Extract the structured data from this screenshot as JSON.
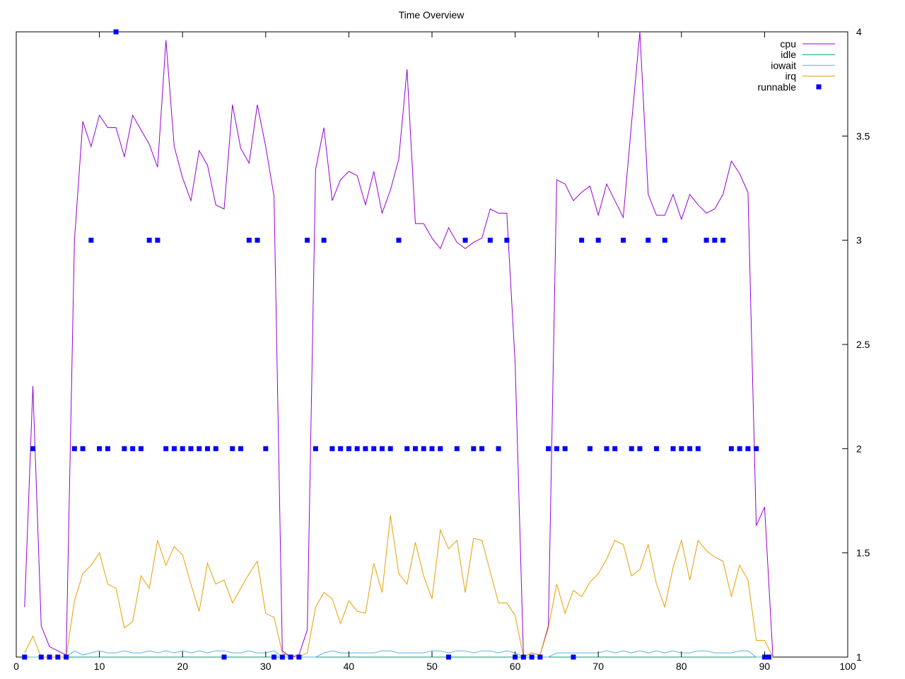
{
  "chart_data": {
    "type": "line",
    "title": "Time Overview",
    "xlabel": "",
    "ylabel": "",
    "xlim": [
      0,
      100
    ],
    "ylim": [
      1,
      4
    ],
    "x_ticks": [
      "0",
      "10",
      "20",
      "30",
      "40",
      "50",
      "60",
      "70",
      "80",
      "90",
      "100"
    ],
    "y_ticks": [
      "1",
      "1.5",
      "2",
      "2.5",
      "3",
      "3.5",
      "4"
    ],
    "y_axis_side": "right",
    "grid": false,
    "legend_position": "top-right",
    "series": [
      {
        "name": "cpu",
        "style": "line",
        "color": "#9400d3",
        "x": [
          1,
          2,
          3,
          4,
          5,
          6,
          7,
          8,
          9,
          10,
          11,
          12,
          13,
          14,
          15,
          16,
          17,
          18,
          19,
          20,
          21,
          22,
          23,
          24,
          25,
          26,
          27,
          28,
          29,
          30,
          31,
          32,
          33,
          34,
          35,
          36,
          37,
          38,
          39,
          40,
          41,
          42,
          43,
          44,
          45,
          46,
          47,
          48,
          49,
          50,
          51,
          52,
          53,
          54,
          55,
          56,
          57,
          58,
          59,
          60,
          61,
          62,
          63,
          64,
          65,
          66,
          67,
          68,
          69,
          70,
          71,
          72,
          73,
          74,
          75,
          76,
          77,
          78,
          79,
          80,
          81,
          82,
          83,
          84,
          85,
          86,
          87,
          88,
          89,
          90,
          91
        ],
        "values": [
          1.24,
          2.3,
          1.15,
          1.05,
          1.03,
          1.01,
          3.0,
          3.57,
          3.45,
          3.6,
          3.54,
          3.54,
          3.4,
          3.6,
          3.53,
          3.46,
          3.35,
          3.96,
          3.45,
          3.3,
          3.19,
          3.43,
          3.36,
          3.17,
          3.15,
          3.65,
          3.44,
          3.37,
          3.65,
          3.45,
          3.21,
          1.03,
          1.0,
          1.01,
          1.13,
          3.34,
          3.54,
          3.19,
          3.29,
          3.33,
          3.31,
          3.17,
          3.33,
          3.13,
          3.24,
          3.39,
          3.82,
          3.08,
          3.08,
          3.01,
          2.96,
          3.06,
          2.99,
          2.96,
          2.99,
          3.01,
          3.15,
          3.13,
          3.13,
          2.41,
          1.0,
          1.02,
          1.01,
          1.15,
          3.29,
          3.27,
          3.19,
          3.23,
          3.26,
          3.12,
          3.27,
          3.19,
          3.11,
          3.56,
          4.0,
          3.22,
          3.12,
          3.12,
          3.22,
          3.1,
          3.22,
          3.17,
          3.13,
          3.15,
          3.22,
          3.38,
          3.32,
          3.23,
          1.63,
          1.72,
          1.0
        ]
      },
      {
        "name": "idle",
        "style": "line",
        "color": "#009e73",
        "x": [
          1,
          90
        ],
        "values": [
          1.0,
          1.0
        ]
      },
      {
        "name": "iowait",
        "style": "line",
        "color": "#56b4e9",
        "x": [
          1,
          2,
          3,
          4,
          5,
          6,
          7,
          8,
          9,
          10,
          11,
          12,
          13,
          14,
          15,
          16,
          17,
          18,
          19,
          20,
          21,
          22,
          23,
          24,
          25,
          26,
          27,
          28,
          29,
          30,
          31,
          32,
          33,
          34,
          35,
          36,
          37,
          38,
          39,
          40,
          41,
          42,
          43,
          44,
          45,
          46,
          47,
          48,
          49,
          50,
          51,
          52,
          53,
          54,
          55,
          56,
          57,
          58,
          59,
          60,
          61,
          62,
          63,
          64,
          65,
          66,
          67,
          68,
          69,
          70,
          71,
          72,
          73,
          74,
          75,
          76,
          77,
          78,
          79,
          80,
          81,
          82,
          83,
          84,
          85,
          86,
          87,
          88,
          89,
          90,
          91
        ],
        "values": [
          1.0,
          1.0,
          1.0,
          1.0,
          1.0,
          1.0,
          1.03,
          1.01,
          1.02,
          1.03,
          1.02,
          1.02,
          1.03,
          1.02,
          1.02,
          1.03,
          1.02,
          1.03,
          1.02,
          1.03,
          1.02,
          1.03,
          1.02,
          1.03,
          1.03,
          1.02,
          1.02,
          1.03,
          1.02,
          1.02,
          1.03,
          1.0,
          1.0,
          1.0,
          1.0,
          1.0,
          1.02,
          1.03,
          1.02,
          1.02,
          1.02,
          1.02,
          1.02,
          1.03,
          1.03,
          1.02,
          1.02,
          1.02,
          1.02,
          1.03,
          1.03,
          1.02,
          1.03,
          1.03,
          1.02,
          1.03,
          1.03,
          1.02,
          1.03,
          1.02,
          1.0,
          1.0,
          1.0,
          1.0,
          1.02,
          1.02,
          1.02,
          1.02,
          1.02,
          1.02,
          1.03,
          1.02,
          1.03,
          1.02,
          1.03,
          1.02,
          1.03,
          1.02,
          1.03,
          1.02,
          1.02,
          1.03,
          1.03,
          1.02,
          1.02,
          1.02,
          1.03,
          1.03,
          1.0,
          1.0,
          1.0
        ]
      },
      {
        "name": "irq",
        "style": "line",
        "color": "#e69f00",
        "x": [
          1,
          2,
          3,
          4,
          5,
          6,
          7,
          8,
          9,
          10,
          11,
          12,
          13,
          14,
          15,
          16,
          17,
          18,
          19,
          20,
          21,
          22,
          23,
          24,
          25,
          26,
          27,
          28,
          29,
          30,
          31,
          32,
          33,
          34,
          35,
          36,
          37,
          38,
          39,
          40,
          41,
          42,
          43,
          44,
          45,
          46,
          47,
          48,
          49,
          50,
          51,
          52,
          53,
          54,
          55,
          56,
          57,
          58,
          59,
          60,
          61,
          62,
          63,
          64,
          65,
          66,
          67,
          68,
          69,
          70,
          71,
          72,
          73,
          74,
          75,
          76,
          77,
          78,
          79,
          80,
          81,
          82,
          83,
          84,
          85,
          86,
          87,
          88,
          89,
          90,
          91
        ],
        "values": [
          1.02,
          1.1,
          1.0,
          1.0,
          1.0,
          1.0,
          1.27,
          1.4,
          1.44,
          1.5,
          1.35,
          1.33,
          1.14,
          1.17,
          1.39,
          1.33,
          1.56,
          1.44,
          1.53,
          1.49,
          1.35,
          1.22,
          1.45,
          1.35,
          1.37,
          1.26,
          1.33,
          1.4,
          1.46,
          1.21,
          1.19,
          1.02,
          1.0,
          1.0,
          1.02,
          1.24,
          1.31,
          1.28,
          1.16,
          1.27,
          1.22,
          1.21,
          1.45,
          1.31,
          1.68,
          1.4,
          1.35,
          1.55,
          1.39,
          1.28,
          1.61,
          1.52,
          1.56,
          1.31,
          1.57,
          1.56,
          1.41,
          1.26,
          1.26,
          1.2,
          1.0,
          1.02,
          1.01,
          1.14,
          1.35,
          1.21,
          1.32,
          1.29,
          1.36,
          1.4,
          1.47,
          1.56,
          1.54,
          1.39,
          1.42,
          1.54,
          1.35,
          1.24,
          1.43,
          1.56,
          1.37,
          1.56,
          1.51,
          1.48,
          1.46,
          1.29,
          1.44,
          1.37,
          1.08,
          1.08,
          1.0
        ]
      },
      {
        "name": "runnable",
        "style": "points",
        "color": "#0000ff",
        "x": [
          1,
          2,
          3,
          4,
          5,
          6,
          7,
          8,
          9,
          10,
          11,
          12,
          13,
          14,
          15,
          16,
          17,
          18,
          19,
          20,
          21,
          22,
          23,
          24,
          25,
          26,
          27,
          28,
          29,
          30,
          31,
          32,
          33,
          34,
          35,
          36,
          37,
          38,
          39,
          40,
          41,
          42,
          43,
          44,
          45,
          46,
          47,
          48,
          49,
          50,
          51,
          52,
          53,
          54,
          55,
          56,
          57,
          58,
          59,
          60,
          61,
          62,
          63,
          64,
          65,
          66,
          67,
          68,
          69,
          70,
          71,
          72,
          73,
          74,
          75,
          76,
          77,
          78,
          79,
          80,
          81,
          82,
          83,
          84,
          85,
          86,
          87,
          88,
          89,
          90,
          90.5
        ],
        "values": [
          1,
          2,
          1,
          1,
          1,
          1,
          2,
          2,
          3,
          2,
          2,
          4,
          2,
          2,
          2,
          3,
          3,
          2,
          2,
          2,
          2,
          2,
          2,
          2,
          1,
          2,
          2,
          3,
          3,
          2,
          1,
          1,
          1,
          1,
          3,
          2,
          3,
          2,
          2,
          2,
          2,
          2,
          2,
          2,
          2,
          3,
          2,
          2,
          2,
          2,
          2,
          1,
          2,
          3,
          2,
          2,
          3,
          2,
          3,
          1,
          1,
          1,
          1,
          2,
          2,
          2,
          1,
          3,
          2,
          3,
          2,
          2,
          3,
          2,
          2,
          3,
          2,
          3,
          2,
          2,
          2,
          2,
          3,
          3,
          3,
          2,
          2,
          2,
          2,
          1,
          1
        ]
      }
    ]
  }
}
